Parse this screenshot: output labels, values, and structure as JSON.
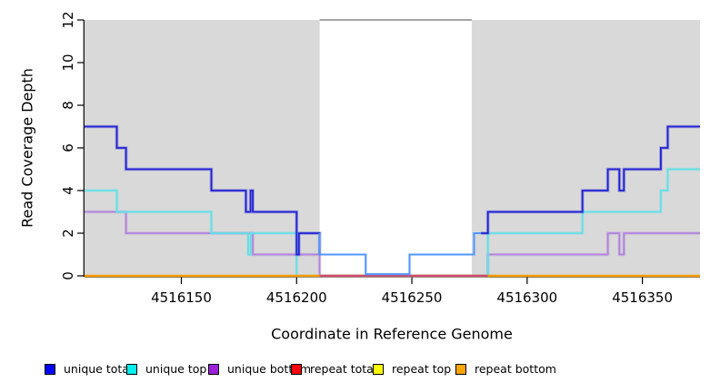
{
  "chart_data": {
    "type": "line",
    "subtype": "step-coverage",
    "title": "",
    "xlabel": "Coordinate in Reference Genome",
    "ylabel": "Read Coverage Depth",
    "xlim": [
      4516108,
      4516375
    ],
    "ylim": [
      0,
      12
    ],
    "x_ticks": [
      4516150,
      4516200,
      4516250,
      4516300,
      4516350
    ],
    "y_ticks": [
      0,
      2,
      4,
      6,
      8,
      10,
      12
    ],
    "grid": false,
    "legend_position": "bottom",
    "colors": {
      "background": "#ffffff",
      "shading": "#d9d9d9",
      "gap_top_line": "#999999",
      "axis": "#000000"
    },
    "shaded_regions": [
      {
        "x0": 4516108,
        "x1": 4516210
      },
      {
        "x0": 4516276,
        "x1": 4516375
      }
    ],
    "gap_region": {
      "x0": 4516210,
      "x1": 4516276,
      "top_line_depth": 12
    },
    "series": [
      {
        "name": "unique total",
        "color": "#2222d4",
        "legend_color": "#0000ff",
        "gap_color": "#4f97ff",
        "gap_range": [
          4516210,
          4516280
        ],
        "steps": [
          [
            4516108,
            7
          ],
          [
            4516122,
            6
          ],
          [
            4516126,
            5
          ],
          [
            4516163,
            4
          ],
          [
            4516178,
            3
          ],
          [
            4516180,
            4
          ],
          [
            4516181,
            3
          ],
          [
            4516200,
            1
          ],
          [
            4516201,
            2
          ],
          [
            4516210,
            1
          ],
          [
            4516230,
            0
          ],
          [
            4516249,
            1
          ],
          [
            4516277,
            2
          ],
          [
            4516283,
            3
          ],
          [
            4516324,
            4
          ],
          [
            4516335,
            5
          ],
          [
            4516340,
            4
          ],
          [
            4516342,
            5
          ],
          [
            4516358,
            6
          ],
          [
            4516361,
            7
          ],
          [
            4516375,
            7
          ]
        ]
      },
      {
        "name": "unique top",
        "color": "#66dfe6",
        "legend_color": "#00eeee",
        "steps": [
          [
            4516108,
            4
          ],
          [
            4516122,
            3
          ],
          [
            4516163,
            2
          ],
          [
            4516179,
            1
          ],
          [
            4516180,
            2
          ],
          [
            4516200,
            0
          ],
          [
            4516283,
            2
          ],
          [
            4516324,
            3
          ],
          [
            4516358,
            4
          ],
          [
            4516361,
            5
          ],
          [
            4516375,
            5
          ]
        ]
      },
      {
        "name": "unique bottom",
        "color": "#b184dc",
        "legend_color": "#9b20d9",
        "steps": [
          [
            4516108,
            3
          ],
          [
            4516126,
            2
          ],
          [
            4516181,
            1
          ],
          [
            4516210,
            0
          ],
          [
            4516283,
            1
          ],
          [
            4516335,
            2
          ],
          [
            4516340,
            1
          ],
          [
            4516342,
            2
          ],
          [
            4516375,
            2
          ]
        ]
      },
      {
        "name": "repeat total",
        "color": "#d04a70",
        "legend_color": "#ff0000",
        "overlay_range": [
          4516210,
          4516283
        ],
        "steps": [
          [
            4516108,
            0
          ],
          [
            4516375,
            0
          ]
        ]
      },
      {
        "name": "repeat top",
        "color": "#ffff00",
        "legend_color": "#ffff00",
        "steps": [
          [
            4516108,
            0
          ],
          [
            4516375,
            0
          ]
        ]
      },
      {
        "name": "repeat bottom",
        "color": "#ff9c00",
        "legend_color": "#ffa500",
        "steps": [
          [
            4516108,
            0
          ],
          [
            4516375,
            0
          ]
        ]
      }
    ]
  }
}
